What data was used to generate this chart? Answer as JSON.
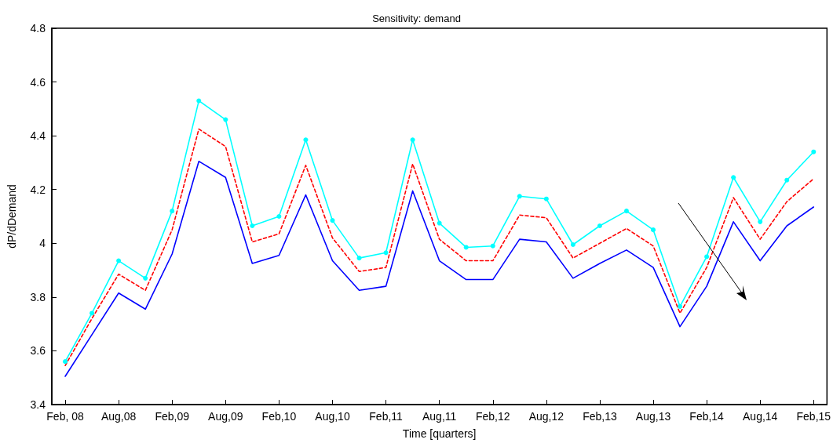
{
  "chart_data": {
    "type": "line",
    "title": "Sensitivity: demand",
    "xlabel": "Time [quarters]",
    "ylabel": "dP/dDemand",
    "categories": [
      "Feb, 08",
      null,
      "Aug,08",
      null,
      "Feb,09",
      null,
      "Aug,09",
      null,
      "Feb,10",
      null,
      "Aug,10",
      null,
      "Feb,11",
      null,
      "Aug,11",
      null,
      "Feb,12",
      null,
      "Aug,12",
      null,
      "Feb,13",
      null,
      "Aug,13",
      null,
      "Feb,14",
      null,
      "Aug,14",
      null,
      "Feb,15"
    ],
    "series": [
      {
        "color": "#00ffff",
        "marker": "circle",
        "line_style": "solid",
        "values": [
          3.56,
          3.74,
          3.935,
          3.87,
          4.12,
          4.53,
          4.46,
          4.065,
          4.1,
          4.385,
          4.085,
          3.945,
          3.965,
          4.385,
          4.075,
          3.985,
          3.99,
          4.175,
          4.165,
          3.995,
          4.065,
          4.12,
          4.05,
          3.765,
          3.95,
          4.245,
          4.08,
          4.235,
          4.34
        ]
      },
      {
        "color": "#ff0000",
        "marker": "none",
        "line_style": "dashed",
        "values": [
          3.545,
          3.72,
          3.885,
          3.825,
          4.05,
          4.425,
          4.36,
          4.005,
          4.035,
          4.29,
          4.02,
          3.895,
          3.91,
          4.295,
          4.015,
          3.935,
          3.935,
          4.105,
          4.095,
          3.945,
          4.0,
          4.055,
          3.99,
          3.74,
          3.91,
          4.17,
          4.015,
          4.155,
          4.24
        ]
      },
      {
        "color": "#0000ff",
        "marker": "none",
        "line_style": "solid",
        "values": [
          3.505,
          3.66,
          3.815,
          3.755,
          3.96,
          4.305,
          4.245,
          3.925,
          3.955,
          4.18,
          3.935,
          3.825,
          3.84,
          4.195,
          3.935,
          3.865,
          3.865,
          4.015,
          4.005,
          3.87,
          3.925,
          3.975,
          3.91,
          3.69,
          3.84,
          4.08,
          3.935,
          4.065,
          4.135
        ]
      }
    ],
    "ylim": [
      3.4,
      4.8
    ],
    "yticks": [
      3.4,
      3.6,
      3.8,
      4,
      4.2,
      4.4,
      4.6,
      4.8
    ],
    "grid": false
  }
}
